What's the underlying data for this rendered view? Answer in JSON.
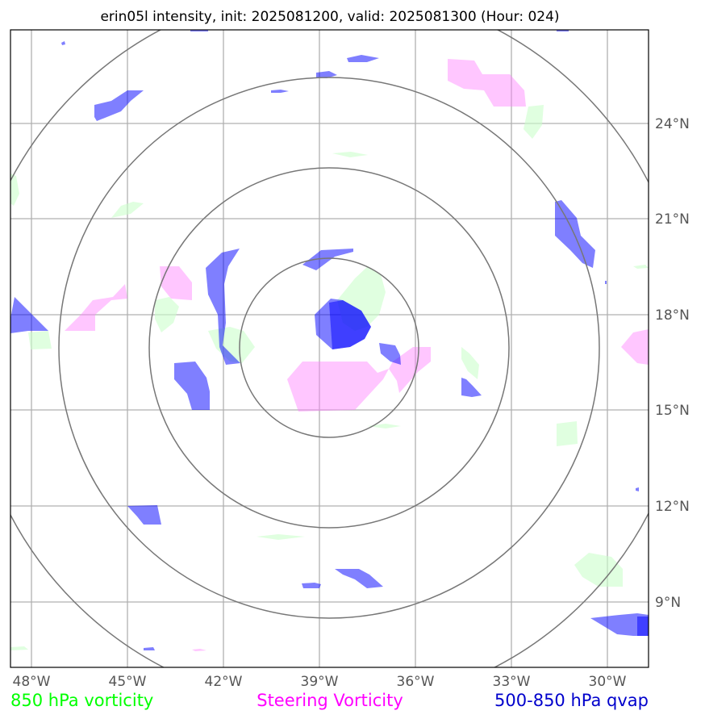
{
  "title": "erin05l intensity, init: 2025081200, valid: 2025081300 (Hour: 024)",
  "storm_id": "erin05l",
  "init_time": "2025081200",
  "valid_time": "2025081300",
  "forecast_hour": "024",
  "map": {
    "lon_labels": [
      "48°W",
      "45°W",
      "42°W",
      "39°W",
      "36°W",
      "33°W",
      "30°W"
    ],
    "lat_labels": [
      "24°N",
      "21°N",
      "18°N",
      "15°N",
      "12°N",
      "9°N"
    ],
    "range_rings": 4,
    "grid": true
  },
  "legend": [
    {
      "label": "850 hPa vorticity",
      "color": "#00ff00"
    },
    {
      "label": "Steering Vorticity",
      "color": "#ff00ff"
    },
    {
      "label": "500-850 hPa qvap",
      "color": "#0000cc"
    }
  ],
  "colors": {
    "vorticity_850_fill": "#ccffcc",
    "steering_vorticity_fill": "#ff80ff",
    "qvap_fill": "#0000ff"
  }
}
